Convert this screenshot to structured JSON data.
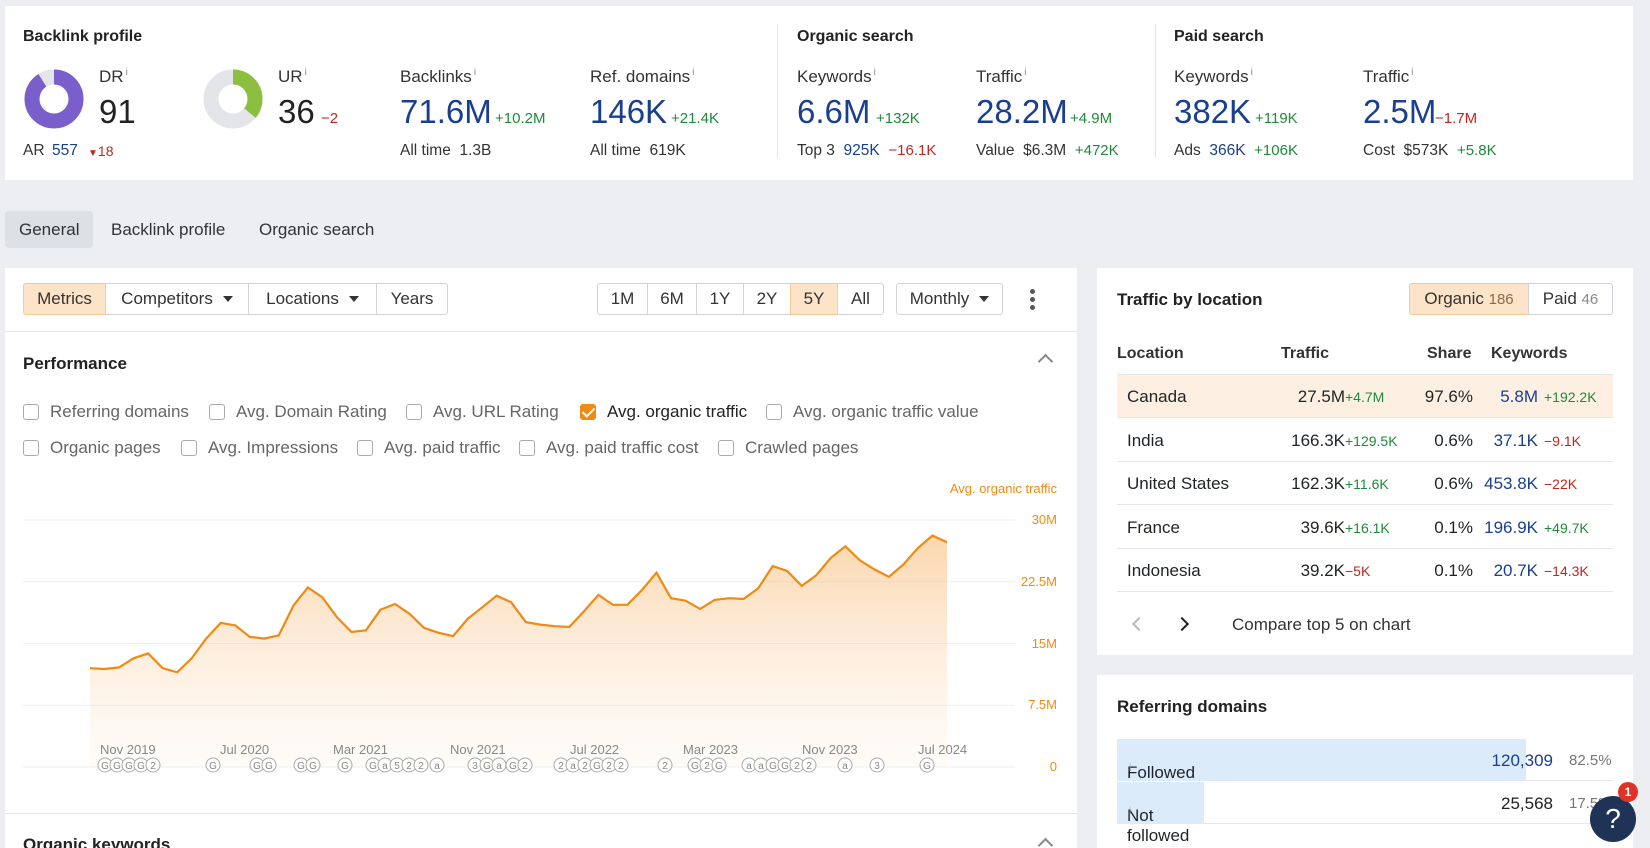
{
  "summary": {
    "backlink": {
      "title": "Backlink profile",
      "dr": {
        "label": "DR",
        "value": "91"
      },
      "ar": {
        "label": "AR",
        "value": "557",
        "change": "18"
      },
      "ur": {
        "label": "UR",
        "value": "36",
        "change": "−2"
      },
      "backlinks": {
        "label": "Backlinks",
        "value": "71.6M",
        "change": "+10.2M",
        "sub_label": "All time",
        "sub_value": "1.3B"
      },
      "ref_domains": {
        "label": "Ref. domains",
        "value": "146K",
        "change": "+21.4K",
        "sub_label": "All time",
        "sub_value": "619K"
      }
    },
    "organic": {
      "title": "Organic search",
      "keywords": {
        "label": "Keywords",
        "value": "6.6M",
        "change": "+132K",
        "sub_label": "Top 3",
        "sub_value": "925K",
        "sub_change": "−16.1K"
      },
      "traffic": {
        "label": "Traffic",
        "value": "28.2M",
        "change": "+4.9M",
        "sub_label": "Value",
        "sub_value": "$6.3M",
        "sub_change": "+472K"
      }
    },
    "paid": {
      "title": "Paid search",
      "keywords": {
        "label": "Keywords",
        "value": "382K",
        "change": "+119K",
        "sub_label": "Ads",
        "sub_value": "366K",
        "sub_change": "+106K"
      },
      "traffic": {
        "label": "Traffic",
        "value": "2.5M",
        "change": "−1.7M",
        "sub_label": "Cost",
        "sub_value": "$573K",
        "sub_change": "+5.8K"
      }
    },
    "info_mark": "i",
    "colors": {
      "dr": "#7a5fcc",
      "ur": "#8cbf3f",
      "ring_bg": "#e4e5e9"
    },
    "ring_levels": {
      "dr": 0.91,
      "ur": 0.36
    }
  },
  "tabs": [
    "General",
    "Backlink profile",
    "Organic search"
  ],
  "toolbar": {
    "left": [
      "Metrics",
      "Competitors",
      "Locations",
      "Years"
    ],
    "ranges": [
      "1M",
      "6M",
      "1Y",
      "2Y",
      "5Y",
      "All"
    ],
    "interval": "Monthly"
  },
  "performance": {
    "title": "Performance",
    "checkboxes_row1": [
      "Referring domains",
      "Avg. Domain Rating",
      "Avg. URL Rating",
      "Avg. organic traffic",
      "Avg. organic traffic value"
    ],
    "checkboxes_row2": [
      "Organic pages",
      "Avg. Impressions",
      "Avg. paid traffic",
      "Avg. paid traffic cost",
      "Crawled pages"
    ],
    "checked": "Avg. organic traffic"
  },
  "chart_data": {
    "type": "area",
    "series": [
      {
        "name": "Avg. organic traffic",
        "values": [
          12.0,
          11.9,
          12.1,
          13.2,
          13.8,
          12.0,
          11.5,
          13.2,
          15.6,
          17.5,
          17.2,
          15.8,
          15.6,
          16.0,
          19.6,
          21.8,
          20.6,
          18.2,
          16.4,
          16.6,
          19.1,
          19.8,
          18.6,
          16.9,
          16.3,
          15.9,
          18.0,
          19.4,
          20.8,
          20.0,
          17.6,
          17.3,
          17.1,
          17.0,
          18.9,
          20.9,
          19.7,
          19.7,
          21.5,
          23.6,
          20.5,
          20.2,
          19.2,
          20.3,
          20.5,
          20.4,
          21.7,
          24.4,
          23.8,
          22.0,
          23.3,
          25.4,
          26.8,
          25.1,
          24.0,
          23.1,
          24.6,
          26.6,
          28.1,
          27.3
        ]
      }
    ],
    "x_ticks": [
      "Nov 2019",
      "Jul 2020",
      "Mar 2021",
      "Nov 2021",
      "Jul 2022",
      "Mar 2023",
      "Nov 2023",
      "Jul 2024"
    ],
    "y_ticks": [
      "30M",
      "22.5M",
      "15M",
      "7.5M",
      "0"
    ],
    "ylim": [
      0,
      30
    ],
    "legend": "Avg. organic traffic",
    "color": "#f08a12",
    "grid": true,
    "markers": [
      "G",
      "G",
      "G",
      "G",
      "2",
      "G",
      "G",
      "G",
      "G",
      "G",
      "G",
      "G",
      "a",
      "5",
      "2",
      "2",
      "a",
      "3",
      "G",
      "a",
      "G",
      "2",
      "2",
      "a",
      "2",
      "G",
      "2",
      "2",
      "2",
      "G",
      "2",
      "G",
      "a",
      "a",
      "G",
      "G",
      "2",
      "2",
      "a",
      "3",
      "G"
    ]
  },
  "next_section": "Organic keywords",
  "traffic_by_location": {
    "title": "Traffic by location",
    "toggle": [
      {
        "label": "Organic",
        "count": "186"
      },
      {
        "label": "Paid",
        "count": "46"
      }
    ],
    "columns": [
      "Location",
      "Traffic",
      "Share",
      "Keywords"
    ],
    "rows": [
      {
        "location": "Canada",
        "traffic": "27.5M",
        "traffic_change": "+4.7M",
        "share": "97.6%",
        "keywords": "5.8M",
        "keywords_change": "+192.2K"
      },
      {
        "location": "India",
        "traffic": "166.3K",
        "traffic_change": "+129.5K",
        "share": "0.6%",
        "keywords": "37.1K",
        "keywords_change": "−9.1K"
      },
      {
        "location": "United States",
        "traffic": "162.3K",
        "traffic_change": "+11.6K",
        "share": "0.6%",
        "keywords": "453.8K",
        "keywords_change": "−22K"
      },
      {
        "location": "France",
        "traffic": "39.6K",
        "traffic_change": "+16.1K",
        "share": "0.1%",
        "keywords": "196.9K",
        "keywords_change": "+49.7K"
      },
      {
        "location": "Indonesia",
        "traffic": "39.2K",
        "traffic_change": "−5K",
        "share": "0.1%",
        "keywords": "20.7K",
        "keywords_change": "−14.3K"
      }
    ],
    "compare": "Compare top 5 on chart"
  },
  "referring_domains": {
    "title": "Referring domains",
    "rows": [
      {
        "label": "Followed",
        "value": "120,309",
        "pct": "82.5%",
        "level": 0.825
      },
      {
        "label": "Not followed",
        "value": "25,568",
        "pct": "17.5%",
        "level": 0.175
      }
    ]
  },
  "help": {
    "label": "?",
    "badge": "1"
  }
}
